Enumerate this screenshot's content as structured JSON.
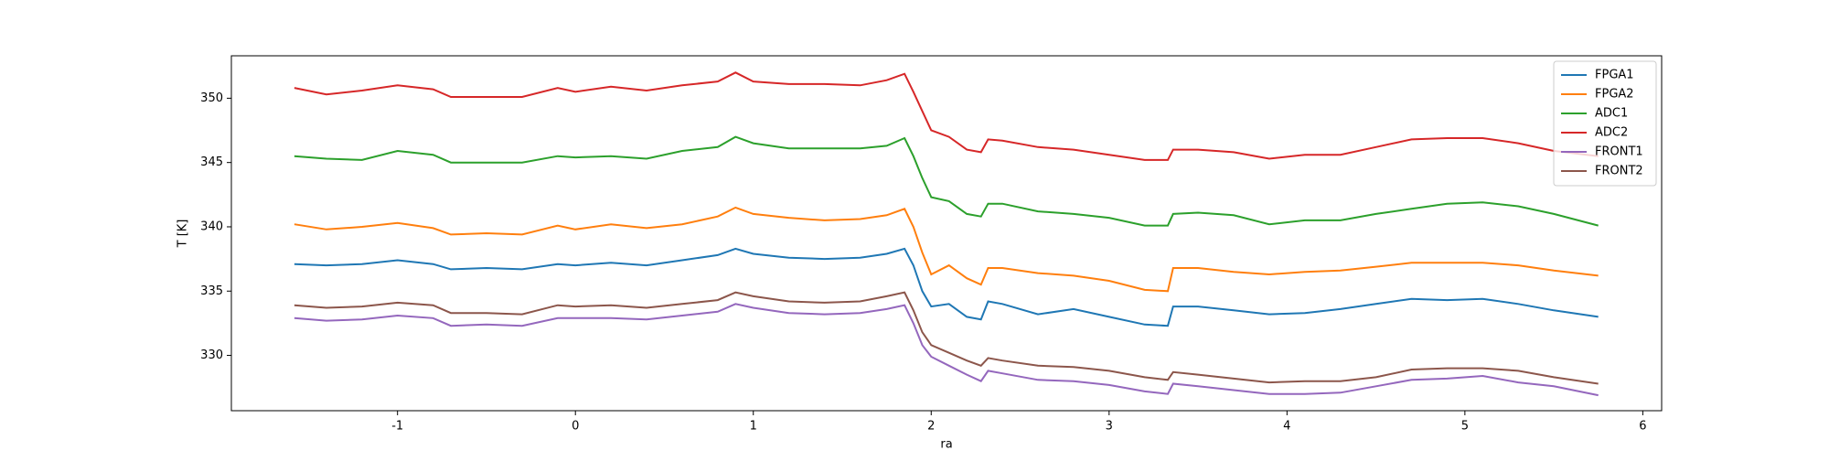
{
  "chart_data": {
    "type": "line",
    "x": [
      -1.58,
      -1.4,
      -1.2,
      -1.0,
      -0.8,
      -0.7,
      -0.5,
      -0.3,
      -0.1,
      0.0,
      0.2,
      0.4,
      0.6,
      0.8,
      0.9,
      1.0,
      1.2,
      1.4,
      1.6,
      1.75,
      1.85,
      1.9,
      1.95,
      2.0,
      2.1,
      2.2,
      2.28,
      2.32,
      2.4,
      2.6,
      2.8,
      3.0,
      3.2,
      3.33,
      3.36,
      3.5,
      3.7,
      3.9,
      4.1,
      4.3,
      4.5,
      4.7,
      4.9,
      5.1,
      5.3,
      5.5,
      5.75
    ],
    "series": [
      {
        "name": "FPGA1",
        "color": "#1f77b4",
        "values": [
          337.1,
          337.0,
          337.1,
          337.4,
          337.1,
          336.7,
          336.8,
          336.7,
          337.1,
          337.0,
          337.2,
          337.0,
          337.4,
          337.8,
          338.3,
          337.9,
          337.6,
          337.5,
          337.6,
          337.9,
          338.3,
          337.0,
          335.0,
          333.8,
          334.0,
          333.0,
          332.8,
          334.2,
          334.0,
          333.2,
          333.6,
          333.0,
          332.4,
          332.3,
          333.8,
          333.8,
          333.5,
          333.2,
          333.3,
          333.6,
          334.0,
          334.4,
          334.3,
          334.4,
          334.0,
          333.5,
          333.0
        ]
      },
      {
        "name": "FPGA2",
        "color": "#ff7f0e",
        "values": [
          340.2,
          339.8,
          340.0,
          340.3,
          339.9,
          339.4,
          339.5,
          339.4,
          340.1,
          339.8,
          340.2,
          339.9,
          340.2,
          340.8,
          341.5,
          341.0,
          340.7,
          340.5,
          340.6,
          340.9,
          341.4,
          340.0,
          338.0,
          336.3,
          337.0,
          336.0,
          335.5,
          336.8,
          336.8,
          336.4,
          336.2,
          335.8,
          335.1,
          335.0,
          336.8,
          336.8,
          336.5,
          336.3,
          336.5,
          336.6,
          336.9,
          337.2,
          337.2,
          337.2,
          337.0,
          336.6,
          336.2
        ]
      },
      {
        "name": "ADC1",
        "color": "#2ca02c",
        "values": [
          345.5,
          345.3,
          345.2,
          345.9,
          345.6,
          345.0,
          345.0,
          345.0,
          345.5,
          345.4,
          345.5,
          345.3,
          345.9,
          346.2,
          347.0,
          346.5,
          346.1,
          346.1,
          346.1,
          346.3,
          346.9,
          345.5,
          343.8,
          342.3,
          342.0,
          341.0,
          340.8,
          341.8,
          341.8,
          341.2,
          341.0,
          340.7,
          340.1,
          340.1,
          341.0,
          341.1,
          340.9,
          340.2,
          340.5,
          340.5,
          341.0,
          341.4,
          341.8,
          341.9,
          341.6,
          341.0,
          340.1
        ]
      },
      {
        "name": "ADC2",
        "color": "#d62728",
        "values": [
          350.8,
          350.3,
          350.6,
          351.0,
          350.7,
          350.1,
          350.1,
          350.1,
          350.8,
          350.5,
          350.9,
          350.6,
          351.0,
          351.3,
          352.0,
          351.3,
          351.1,
          351.1,
          351.0,
          351.4,
          351.9,
          350.5,
          349.0,
          347.5,
          347.0,
          346.0,
          345.8,
          346.8,
          346.7,
          346.2,
          346.0,
          345.6,
          345.2,
          345.2,
          346.0,
          346.0,
          345.8,
          345.3,
          345.6,
          345.6,
          346.2,
          346.8,
          346.9,
          346.9,
          346.5,
          345.9,
          345.5
        ]
      },
      {
        "name": "FRONT1",
        "color": "#9467bd",
        "values": [
          332.9,
          332.7,
          332.8,
          333.1,
          332.9,
          332.3,
          332.4,
          332.3,
          332.9,
          332.9,
          332.9,
          332.8,
          333.1,
          333.4,
          334.0,
          333.7,
          333.3,
          333.2,
          333.3,
          333.6,
          333.9,
          332.5,
          330.8,
          329.9,
          329.2,
          328.5,
          328.0,
          328.8,
          328.6,
          328.1,
          328.0,
          327.7,
          327.2,
          327.0,
          327.8,
          327.6,
          327.3,
          327.0,
          327.0,
          327.1,
          327.6,
          328.1,
          328.2,
          328.4,
          327.9,
          327.6,
          326.9
        ]
      },
      {
        "name": "FRONT2",
        "color": "#8c564b",
        "values": [
          333.9,
          333.7,
          333.8,
          334.1,
          333.9,
          333.3,
          333.3,
          333.2,
          333.9,
          333.8,
          333.9,
          333.7,
          334.0,
          334.3,
          334.9,
          334.6,
          334.2,
          334.1,
          334.2,
          334.6,
          334.9,
          333.5,
          331.8,
          330.8,
          330.2,
          329.6,
          329.2,
          329.8,
          329.6,
          329.2,
          329.1,
          328.8,
          328.3,
          328.1,
          328.7,
          328.5,
          328.2,
          327.9,
          328.0,
          328.0,
          328.3,
          328.9,
          329.0,
          329.0,
          328.8,
          328.3,
          327.8
        ]
      }
    ],
    "xlabel": "ra",
    "ylabel": "T [K]",
    "xlim": [
      -1.934,
      6.106
    ],
    "xticks": [
      -1,
      0,
      1,
      2,
      3,
      4,
      5,
      6
    ],
    "ylim": [
      325.7,
      353.3
    ],
    "yticks": [
      330,
      335,
      340,
      345,
      350
    ],
    "legend": "upper right"
  }
}
